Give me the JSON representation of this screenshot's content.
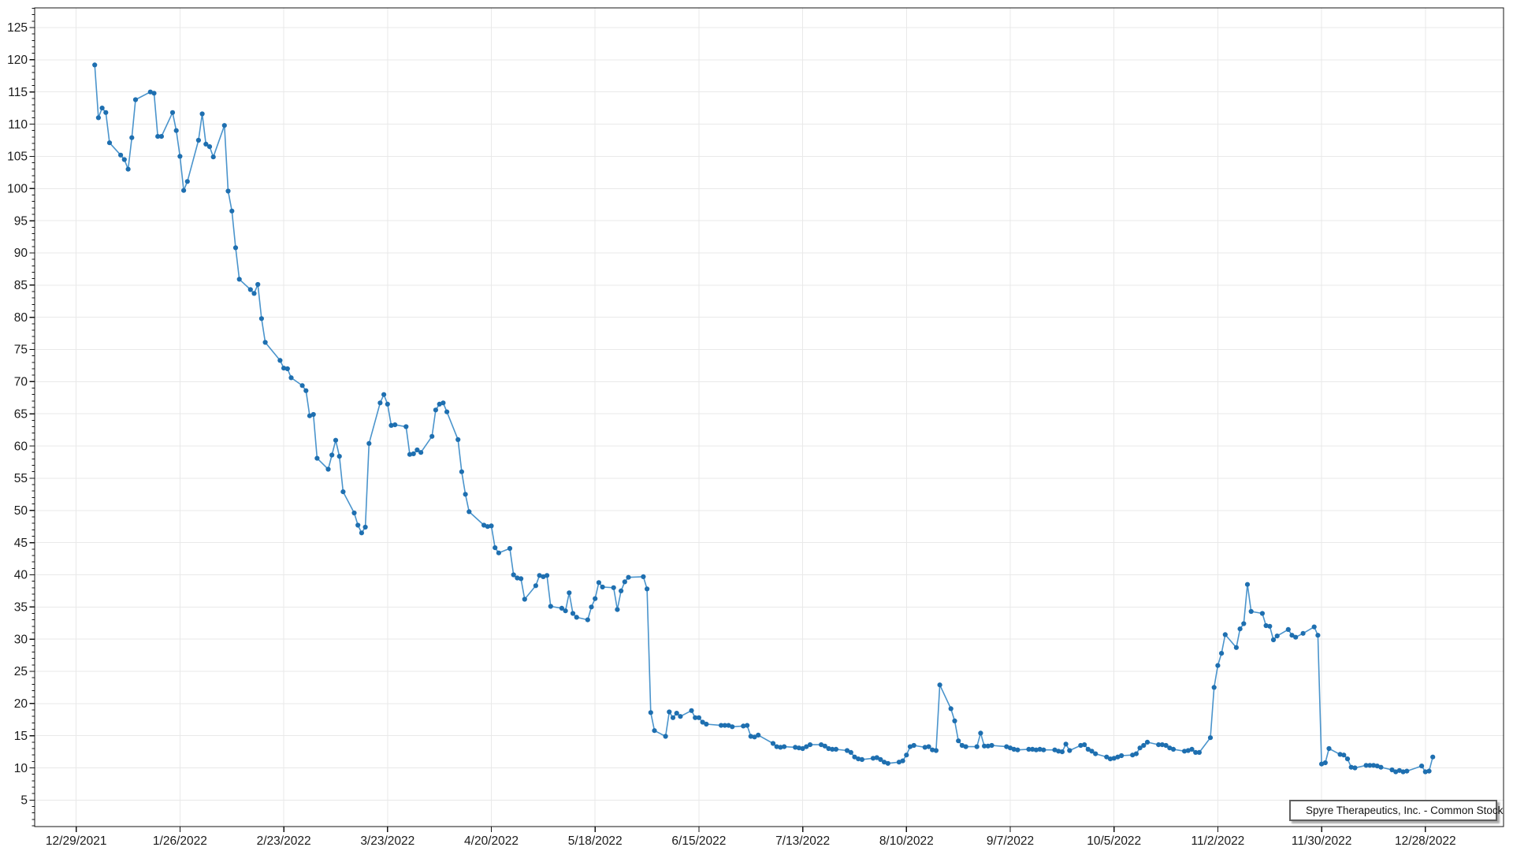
{
  "chart_data": {
    "type": "line",
    "title": "",
    "xlabel": "",
    "ylabel": "",
    "grid": true,
    "marker": "circle",
    "legend": {
      "label": "Spyre Therapeutics, Inc. - Common Stock",
      "position": "bottom-right"
    },
    "colors": {
      "marker": "#1e6fb0",
      "line": "#4a94cc",
      "gridline": "#e9e9e9",
      "axis": "#141414",
      "background": "#ffffff",
      "legend_border": "#5f5f5f"
    },
    "y_axis": {
      "tick_min": 5,
      "tick_max": 125,
      "major_step": 5,
      "minor_step": 1,
      "tick_labels": [
        5,
        10,
        15,
        20,
        25,
        30,
        35,
        40,
        45,
        50,
        55,
        60,
        65,
        70,
        75,
        80,
        85,
        90,
        95,
        100,
        105,
        110,
        115,
        120,
        125
      ]
    },
    "x_axis": {
      "origin_label": "12/29/2021",
      "major_step_days": 28,
      "tick_labels": [
        "12/29/2021",
        "1/26/2022",
        "2/23/2022",
        "3/23/2022",
        "4/20/2022",
        "5/18/2022",
        "6/15/2022",
        "7/13/2022",
        "8/10/2022",
        "9/7/2022",
        "10/5/2022",
        "11/2/2022",
        "11/30/2022",
        "12/28/2022"
      ]
    },
    "series": [
      {
        "name": "Spyre Therapeutics, Inc. - Common Stock",
        "points": [
          [
            "1/3",
            119.2
          ],
          [
            "1/4",
            111.0
          ],
          [
            "1/5",
            112.5
          ],
          [
            "1/6",
            111.8
          ],
          [
            "1/7",
            107.1
          ],
          [
            "1/10",
            105.2
          ],
          [
            "1/11",
            104.5
          ],
          [
            "1/12",
            103.0
          ],
          [
            "1/13",
            107.9
          ],
          [
            "1/14",
            113.8
          ],
          [
            "1/18",
            115.0
          ],
          [
            "1/19",
            114.8
          ],
          [
            "1/20",
            108.1
          ],
          [
            "1/21",
            108.1
          ],
          [
            "1/24",
            111.8
          ],
          [
            "1/25",
            109.0
          ],
          [
            "1/26",
            105.0
          ],
          [
            "1/27",
            99.7
          ],
          [
            "1/28",
            101.1
          ],
          [
            "1/31",
            107.5
          ],
          [
            "2/1",
            111.6
          ],
          [
            "2/2",
            106.9
          ],
          [
            "2/3",
            106.5
          ],
          [
            "2/4",
            104.9
          ],
          [
            "2/7",
            109.8
          ],
          [
            "2/8",
            99.6
          ],
          [
            "2/9",
            96.5
          ],
          [
            "2/10",
            90.8
          ],
          [
            "2/11",
            85.9
          ],
          [
            "2/14",
            84.3
          ],
          [
            "2/15",
            83.7
          ],
          [
            "2/16",
            85.1
          ],
          [
            "2/17",
            79.8
          ],
          [
            "2/18",
            76.1
          ],
          [
            "2/22",
            73.3
          ],
          [
            "2/23",
            72.1
          ],
          [
            "2/24",
            72.0
          ],
          [
            "2/25",
            70.6
          ],
          [
            "2/28",
            69.4
          ],
          [
            "3/1",
            68.6
          ],
          [
            "3/2",
            64.7
          ],
          [
            "3/3",
            64.9
          ],
          [
            "3/4",
            58.1
          ],
          [
            "3/7",
            56.4
          ],
          [
            "3/8",
            58.6
          ],
          [
            "3/9",
            60.9
          ],
          [
            "3/10",
            58.4
          ],
          [
            "3/11",
            52.9
          ],
          [
            "3/14",
            49.6
          ],
          [
            "3/15",
            47.7
          ],
          [
            "3/16",
            46.5
          ],
          [
            "3/17",
            47.4
          ],
          [
            "3/18",
            60.4
          ],
          [
            "3/21",
            66.7
          ],
          [
            "3/22",
            68.0
          ],
          [
            "3/23",
            66.5
          ],
          [
            "3/24",
            63.2
          ],
          [
            "3/25",
            63.3
          ],
          [
            "3/28",
            63.0
          ],
          [
            "3/29",
            58.7
          ],
          [
            "3/30",
            58.8
          ],
          [
            "3/31",
            59.4
          ],
          [
            "4/1",
            59.0
          ],
          [
            "4/4",
            61.5
          ],
          [
            "4/5",
            65.6
          ],
          [
            "4/6",
            66.5
          ],
          [
            "4/7",
            66.7
          ],
          [
            "4/8",
            65.3
          ],
          [
            "4/11",
            61.0
          ],
          [
            "4/12",
            56.0
          ],
          [
            "4/13",
            52.5
          ],
          [
            "4/14",
            49.8
          ],
          [
            "4/18",
            47.7
          ],
          [
            "4/19",
            47.5
          ],
          [
            "4/20",
            47.6
          ],
          [
            "4/21",
            44.2
          ],
          [
            "4/22",
            43.4
          ],
          [
            "4/25",
            44.1
          ],
          [
            "4/26",
            40.0
          ],
          [
            "4/27",
            39.5
          ],
          [
            "4/28",
            39.4
          ],
          [
            "4/29",
            36.2
          ],
          [
            "5/2",
            38.3
          ],
          [
            "5/3",
            39.9
          ],
          [
            "5/4",
            39.7
          ],
          [
            "5/5",
            39.9
          ],
          [
            "5/6",
            35.1
          ],
          [
            "5/9",
            34.8
          ],
          [
            "5/10",
            34.4
          ],
          [
            "5/11",
            37.2
          ],
          [
            "5/12",
            34.0
          ],
          [
            "5/13",
            33.4
          ],
          [
            "5/16",
            33.0
          ],
          [
            "5/17",
            35.0
          ],
          [
            "5/18",
            36.3
          ],
          [
            "5/19",
            38.8
          ],
          [
            "5/20",
            38.1
          ],
          [
            "5/23",
            38.0
          ],
          [
            "5/24",
            34.6
          ],
          [
            "5/25",
            37.5
          ],
          [
            "5/26",
            38.9
          ],
          [
            "5/27",
            39.6
          ],
          [
            "5/31",
            39.7
          ],
          [
            "6/1",
            37.8
          ],
          [
            "6/2",
            18.6
          ],
          [
            "6/3",
            15.8
          ],
          [
            "6/6",
            14.9
          ],
          [
            "6/7",
            18.7
          ],
          [
            "6/8",
            17.8
          ],
          [
            "6/9",
            18.5
          ],
          [
            "6/10",
            18.0
          ],
          [
            "6/13",
            18.9
          ],
          [
            "6/14",
            17.8
          ],
          [
            "6/15",
            17.8
          ],
          [
            "6/16",
            17.1
          ],
          [
            "6/17",
            16.8
          ],
          [
            "6/21",
            16.6
          ],
          [
            "6/22",
            16.6
          ],
          [
            "6/23",
            16.6
          ],
          [
            "6/24",
            16.4
          ],
          [
            "6/27",
            16.5
          ],
          [
            "6/28",
            16.6
          ],
          [
            "6/29",
            14.9
          ],
          [
            "6/30",
            14.8
          ],
          [
            "7/1",
            15.1
          ],
          [
            "7/5",
            13.8
          ],
          [
            "7/6",
            13.3
          ],
          [
            "7/7",
            13.2
          ],
          [
            "7/8",
            13.3
          ],
          [
            "7/11",
            13.2
          ],
          [
            "7/12",
            13.1
          ],
          [
            "7/13",
            13.0
          ],
          [
            "7/14",
            13.3
          ],
          [
            "7/15",
            13.6
          ],
          [
            "7/18",
            13.6
          ],
          [
            "7/19",
            13.4
          ],
          [
            "7/20",
            13.0
          ],
          [
            "7/21",
            12.9
          ],
          [
            "7/22",
            12.9
          ],
          [
            "7/25",
            12.7
          ],
          [
            "7/26",
            12.4
          ],
          [
            "7/27",
            11.7
          ],
          [
            "7/28",
            11.4
          ],
          [
            "7/29",
            11.3
          ],
          [
            "8/1",
            11.5
          ],
          [
            "8/2",
            11.6
          ],
          [
            "8/3",
            11.3
          ],
          [
            "8/4",
            10.9
          ],
          [
            "8/5",
            10.7
          ],
          [
            "8/8",
            10.9
          ],
          [
            "8/9",
            11.1
          ],
          [
            "8/10",
            12.0
          ],
          [
            "8/11",
            13.3
          ],
          [
            "8/12",
            13.5
          ],
          [
            "8/15",
            13.2
          ],
          [
            "8/16",
            13.3
          ],
          [
            "8/17",
            12.8
          ],
          [
            "8/18",
            12.7
          ],
          [
            "8/19",
            22.9
          ],
          [
            "8/22",
            19.2
          ],
          [
            "8/23",
            17.3
          ],
          [
            "8/24",
            14.2
          ],
          [
            "8/25",
            13.5
          ],
          [
            "8/26",
            13.3
          ],
          [
            "8/29",
            13.3
          ],
          [
            "8/30",
            15.4
          ],
          [
            "8/31",
            13.4
          ],
          [
            "9/1",
            13.4
          ],
          [
            "9/2",
            13.5
          ],
          [
            "9/6",
            13.3
          ],
          [
            "9/7",
            13.1
          ],
          [
            "9/8",
            12.9
          ],
          [
            "9/9",
            12.8
          ],
          [
            "9/12",
            12.9
          ],
          [
            "9/13",
            12.9
          ],
          [
            "9/14",
            12.8
          ],
          [
            "9/15",
            12.9
          ],
          [
            "9/16",
            12.8
          ],
          [
            "9/19",
            12.8
          ],
          [
            "9/20",
            12.6
          ],
          [
            "9/21",
            12.5
          ],
          [
            "9/22",
            13.7
          ],
          [
            "9/23",
            12.7
          ],
          [
            "9/26",
            13.5
          ],
          [
            "9/27",
            13.6
          ],
          [
            "9/28",
            12.9
          ],
          [
            "9/29",
            12.6
          ],
          [
            "9/30",
            12.2
          ],
          [
            "10/3",
            11.7
          ],
          [
            "10/4",
            11.4
          ],
          [
            "10/5",
            11.5
          ],
          [
            "10/6",
            11.7
          ],
          [
            "10/7",
            11.9
          ],
          [
            "10/10",
            12.0
          ],
          [
            "10/11",
            12.2
          ],
          [
            "10/12",
            13.1
          ],
          [
            "10/13",
            13.5
          ],
          [
            "10/14",
            14.0
          ],
          [
            "10/17",
            13.6
          ],
          [
            "10/18",
            13.6
          ],
          [
            "10/19",
            13.5
          ],
          [
            "10/20",
            13.1
          ],
          [
            "10/21",
            12.9
          ],
          [
            "10/24",
            12.6
          ],
          [
            "10/25",
            12.7
          ],
          [
            "10/26",
            12.9
          ],
          [
            "10/27",
            12.4
          ],
          [
            "10/28",
            12.4
          ],
          [
            "10/31",
            14.7
          ],
          [
            "11/1",
            22.5
          ],
          [
            "11/2",
            25.9
          ],
          [
            "11/3",
            27.8
          ],
          [
            "11/4",
            30.7
          ],
          [
            "11/7",
            28.7
          ],
          [
            "11/8",
            31.6
          ],
          [
            "11/9",
            32.4
          ],
          [
            "11/10",
            38.5
          ],
          [
            "11/11",
            34.3
          ],
          [
            "11/14",
            34.0
          ],
          [
            "11/15",
            32.1
          ],
          [
            "11/16",
            32.0
          ],
          [
            "11/17",
            29.9
          ],
          [
            "11/18",
            30.5
          ],
          [
            "11/21",
            31.5
          ],
          [
            "11/22",
            30.6
          ],
          [
            "11/23",
            30.3
          ],
          [
            "11/25",
            30.9
          ],
          [
            "11/28",
            31.9
          ],
          [
            "11/29",
            30.6
          ],
          [
            "11/30",
            10.6
          ],
          [
            "12/1",
            10.8
          ],
          [
            "12/2",
            13.0
          ],
          [
            "12/5",
            12.1
          ],
          [
            "12/6",
            12.0
          ],
          [
            "12/7",
            11.4
          ],
          [
            "12/8",
            10.1
          ],
          [
            "12/9",
            10.0
          ],
          [
            "12/12",
            10.4
          ],
          [
            "12/13",
            10.4
          ],
          [
            "12/14",
            10.4
          ],
          [
            "12/15",
            10.3
          ],
          [
            "12/16",
            10.1
          ],
          [
            "12/19",
            9.7
          ],
          [
            "12/20",
            9.4
          ],
          [
            "12/21",
            9.6
          ],
          [
            "12/22",
            9.4
          ],
          [
            "12/23",
            9.5
          ],
          [
            "12/27",
            10.3
          ],
          [
            "12/28",
            9.4
          ],
          [
            "12/29",
            9.5
          ],
          [
            "12/30",
            11.7
          ]
        ]
      }
    ]
  }
}
